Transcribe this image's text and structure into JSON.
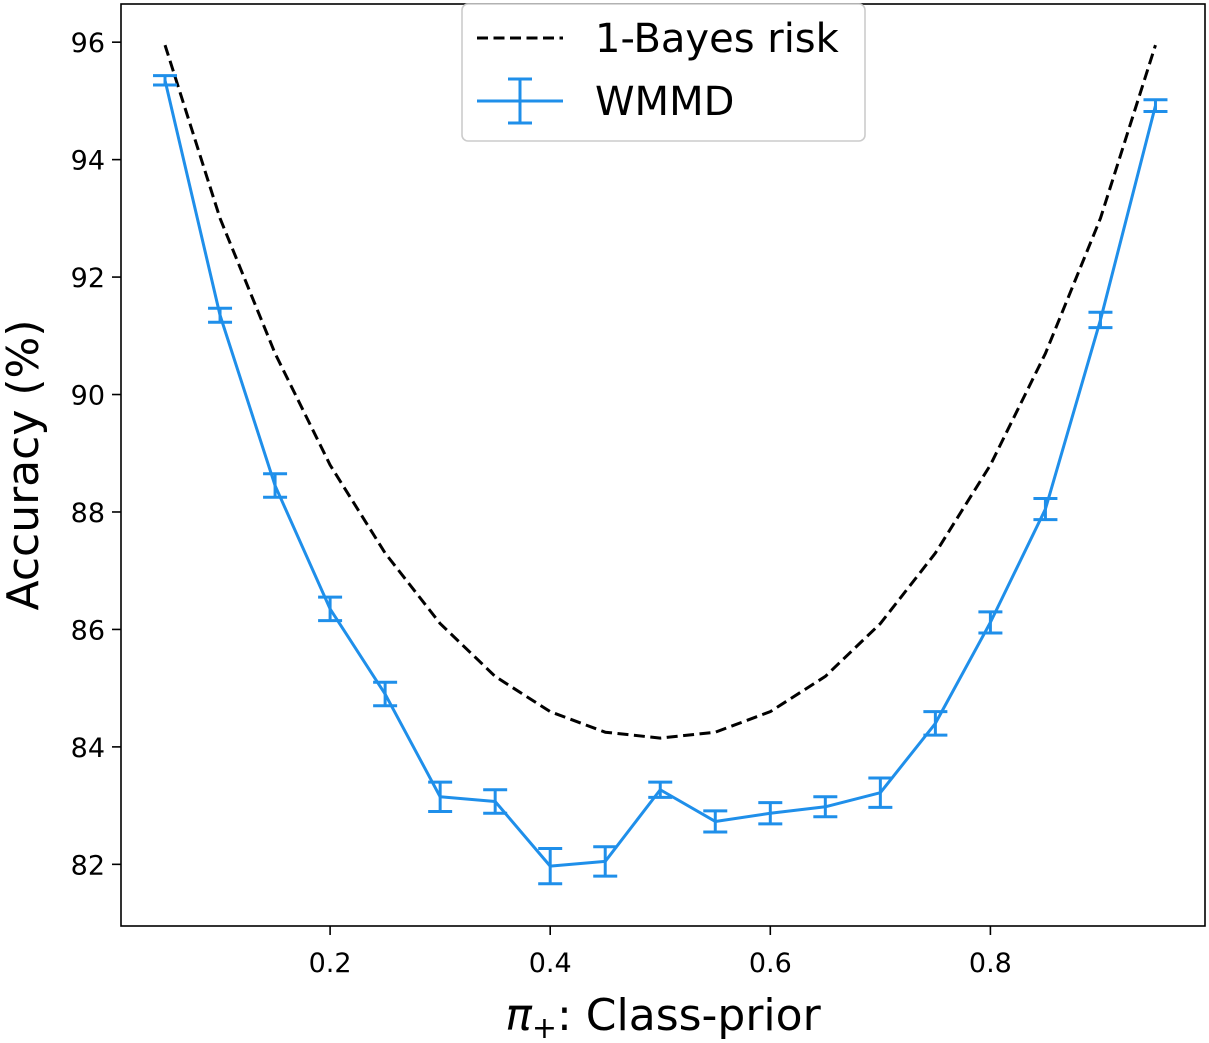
{
  "chart_data": {
    "type": "line",
    "xlabel_symbol": "π",
    "xlabel_subscript": "+",
    "xlabel_text": ": Class-prior",
    "ylabel": "Accuracy (%)",
    "xlim": [
      0.01,
      0.995
    ],
    "ylim": [
      80.95,
      96.65
    ],
    "xticks": [
      0.2,
      0.4,
      0.6,
      0.8
    ],
    "xtick_labels": [
      "0.2",
      "0.4",
      "0.6",
      "0.8"
    ],
    "yticks": [
      82,
      84,
      86,
      88,
      90,
      92,
      94,
      96
    ],
    "ytick_labels": [
      "82",
      "84",
      "86",
      "88",
      "90",
      "92",
      "94",
      "96"
    ],
    "grid": false,
    "legend_position": "top-center",
    "series": [
      {
        "name": "1-Bayes risk",
        "style": "dashed",
        "color": "#000000",
        "x": [
          0.05,
          0.1,
          0.15,
          0.2,
          0.25,
          0.3,
          0.35,
          0.4,
          0.45,
          0.5,
          0.55,
          0.6,
          0.65,
          0.7,
          0.75,
          0.8,
          0.85,
          0.9,
          0.95
        ],
        "y": [
          95.95,
          93.0,
          90.7,
          88.8,
          87.3,
          86.1,
          85.2,
          84.6,
          84.25,
          84.15,
          84.25,
          84.6,
          85.2,
          86.1,
          87.3,
          88.8,
          90.7,
          93.0,
          95.95
        ]
      },
      {
        "name": "WMMD",
        "style": "solid-errorbar",
        "color": "#1f8fea",
        "x": [
          0.05,
          0.1,
          0.15,
          0.2,
          0.25,
          0.3,
          0.35,
          0.4,
          0.45,
          0.5,
          0.55,
          0.6,
          0.65,
          0.7,
          0.75,
          0.8,
          0.85,
          0.9,
          0.95
        ],
        "y": [
          95.35,
          91.35,
          88.45,
          86.35,
          84.9,
          83.15,
          83.07,
          81.97,
          82.05,
          83.27,
          82.73,
          82.87,
          82.98,
          83.22,
          84.4,
          86.12,
          88.05,
          91.27,
          94.92
        ],
        "err": [
          0.08,
          0.12,
          0.2,
          0.2,
          0.2,
          0.25,
          0.2,
          0.3,
          0.25,
          0.13,
          0.18,
          0.18,
          0.17,
          0.25,
          0.2,
          0.18,
          0.18,
          0.13,
          0.1
        ]
      }
    ]
  }
}
